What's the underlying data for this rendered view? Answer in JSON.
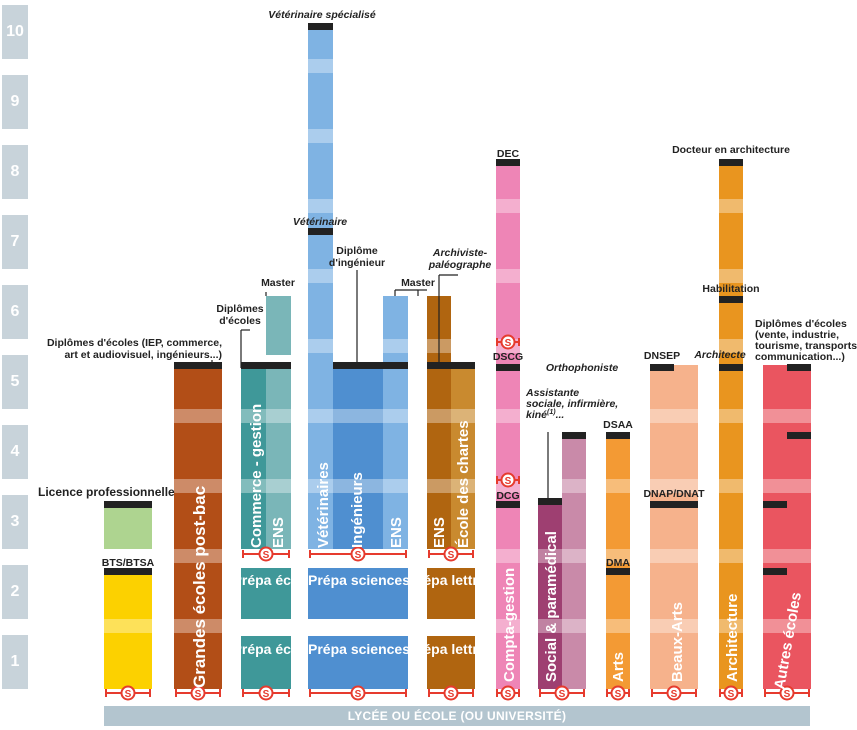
{
  "years": [
    "1",
    "2",
    "3",
    "4",
    "5",
    "6",
    "7",
    "8",
    "9",
    "10"
  ],
  "base_label": "LYCÉE OU ÉCOLE (OU UNIVERSITÉ)",
  "selection_mark": "S",
  "columns": {
    "licence_bts": {
      "label_top": "Licence professionnelle",
      "label_mid": "BTS/BTSA"
    },
    "grandes_ecoles": {
      "label": "Grandes écoles post-bac",
      "top_label": "Diplômes d'écoles (IEP, commerce, art et audiovisuel, ingénieurs...)"
    },
    "commerce": {
      "label_main": "Commerce - gestion",
      "label_ens": "ENS",
      "prepa": "Prépa éco",
      "diplomes": "Diplômes d'écoles",
      "master": "Master"
    },
    "sciences": {
      "label_vet": "Vétérinaires",
      "label_ing": "Ingénieurs",
      "label_ens": "ENS",
      "prepa": "Prépa sciences",
      "vet_spec": "Vétérinaire spécialisé",
      "vet": "Vétérinaire",
      "dipl_ing": "Diplôme d'ingénieur",
      "master": "Master"
    },
    "lettres": {
      "label_ens": "ENS",
      "label_chartes": "École des chartes",
      "prepa": "Prépa lettres",
      "archiviste": "Archiviste-paléographe"
    },
    "compta": {
      "label": "Compta-gestion",
      "dec": "DEC",
      "dscg": "DSCG",
      "dcg": "DCG"
    },
    "social": {
      "label": "Social & paramédical",
      "assistante": "Assistante sociale, infirmière, kiné",
      "assistante_sup": "(1)",
      "assistante_tail": "...",
      "ortho": "Orthophoniste"
    },
    "arts": {
      "label": "Arts",
      "dsaa": "DSAA",
      "dma": "DMA"
    },
    "beaux_arts": {
      "label": "Beaux-Arts",
      "dnsep": "DNSEP",
      "dnap": "DNAP/DNAT"
    },
    "architecture": {
      "label": "Architecture",
      "docteur": "Docteur en architecture",
      "habilitation": "Habilitation",
      "architecte": "Architecte"
    },
    "autres": {
      "label": "Autres écoles",
      "top_label": "Diplômes d'écoles (vente, industrie, tourisme, transports, communication...)"
    }
  },
  "colors": {
    "yellow": "#fcd100",
    "green": "#aed490",
    "brown": "#b24e17",
    "teal": "#3f9899",
    "teal_light": "#7ab6b8",
    "blue": "#4f8fd0",
    "blue_light": "#7fb3e3",
    "ochre": "#b06510",
    "ochre_light": "#c98a2f",
    "pink": "#ee85b6",
    "plum": "#9e3f71",
    "plum_light": "#c98aa9",
    "orange": "#f39a34",
    "peach": "#f6b28c",
    "amber": "#e9951f",
    "red": "#ea5560",
    "black": "#222222",
    "sel": "#e63b2e"
  }
}
